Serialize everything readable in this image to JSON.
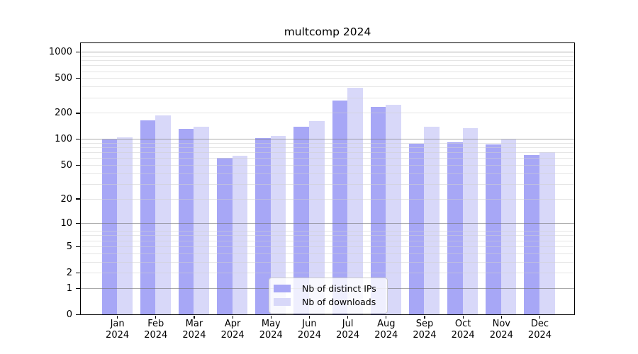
{
  "title": "multcomp 2024",
  "chart_data": {
    "type": "bar",
    "title": "multcomp 2024",
    "categories": [
      {
        "month": "Jan",
        "year": "2024"
      },
      {
        "month": "Feb",
        "year": "2024"
      },
      {
        "month": "Mar",
        "year": "2024"
      },
      {
        "month": "Apr",
        "year": "2024"
      },
      {
        "month": "May",
        "year": "2024"
      },
      {
        "month": "Jun",
        "year": "2024"
      },
      {
        "month": "Jul",
        "year": "2024"
      },
      {
        "month": "Aug",
        "year": "2024"
      },
      {
        "month": "Sep",
        "year": "2024"
      },
      {
        "month": "Oct",
        "year": "2024"
      },
      {
        "month": "Nov",
        "year": "2024"
      },
      {
        "month": "Dec",
        "year": "2024"
      }
    ],
    "series": [
      {
        "name": "Nb of distinct IPs",
        "color": "#a7a7f6",
        "values": [
          100,
          168,
          134,
          62,
          104,
          140,
          280,
          238,
          89,
          94,
          88,
          67
        ]
      },
      {
        "name": "Nb of downloads",
        "color": "#d8d8f9",
        "values": [
          107,
          192,
          141,
          65,
          110,
          163,
          394,
          252,
          141,
          136,
          100,
          72
        ]
      }
    ],
    "y_axis": {
      "scale": "log1p",
      "ticks": [
        0,
        1,
        2,
        5,
        10,
        20,
        50,
        100,
        200,
        500,
        1000
      ],
      "major_gridlines": [
        1,
        10,
        100,
        1000
      ],
      "minor_gridlines": [
        2,
        3,
        4,
        5,
        6,
        7,
        8,
        20,
        30,
        40,
        50,
        60,
        70,
        80,
        90,
        200,
        300,
        400,
        500,
        600,
        700,
        800,
        900
      ],
      "top_value": 1270
    },
    "xlabel": "",
    "ylabel": "",
    "grid": true,
    "legend_position": "bottom-center"
  },
  "colors": {
    "frame": "#000000",
    "major_grid": "#a8a8a8",
    "minor_grid": "#e9e9e9",
    "background": "#ffffff"
  }
}
